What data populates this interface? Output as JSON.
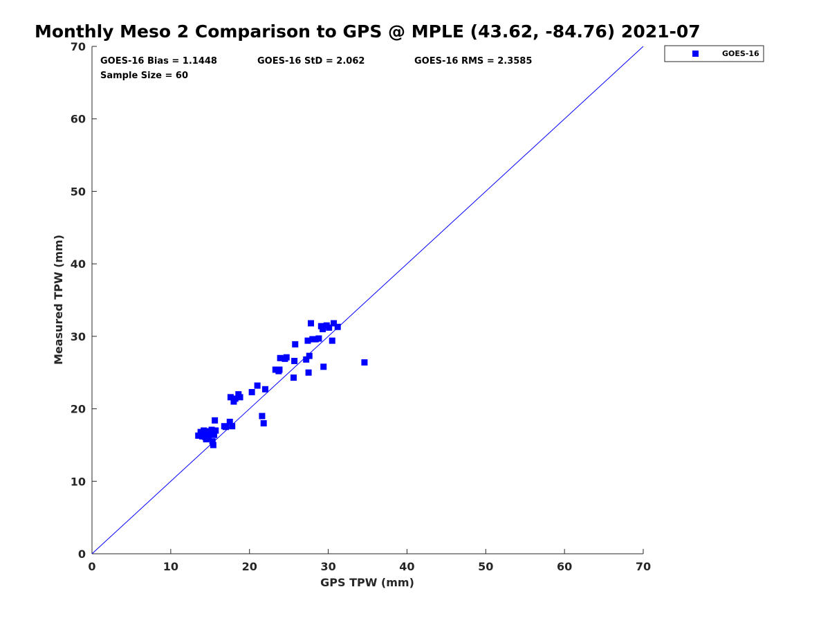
{
  "chart_data": {
    "type": "scatter",
    "title": "Monthly Meso 2 Comparison to GPS @ MPLE (43.62, -84.76) 2021-07",
    "xlabel": "GPS TPW (mm)",
    "ylabel": "Measured TPW (mm)",
    "xlim": [
      0,
      70
    ],
    "ylim": [
      0,
      70
    ],
    "xticks": [
      "0",
      "10",
      "20",
      "30",
      "40",
      "50",
      "60",
      "70"
    ],
    "yticks": [
      "0",
      "10",
      "20",
      "30",
      "40",
      "50",
      "60",
      "70"
    ],
    "grid": false,
    "legend_position": "outside-top-right",
    "stats": {
      "bias": "GOES-16 Bias = 1.1448",
      "std": "GOES-16 StD = 2.062",
      "rms": "GOES-16 RMS = 2.3585",
      "sample_size": "Sample Size = 60"
    },
    "reference_line": {
      "name": "1:1 line",
      "x": [
        0,
        70
      ],
      "y": [
        0,
        70
      ],
      "color": "#0000ff"
    },
    "series": [
      {
        "name": "GOES-16",
        "color": "#0000ff",
        "marker": "square",
        "x": [
          13.5,
          13.8,
          14.0,
          14.2,
          14.3,
          14.5,
          14.6,
          14.8,
          15.0,
          15.2,
          15.3,
          15.4,
          15.5,
          15.6,
          15.7,
          13.9,
          14.4,
          15.1,
          14.1,
          15.4,
          16.8,
          17.0,
          17.5,
          17.8,
          17.6,
          18.0,
          18.2,
          18.6,
          18.8,
          20.3,
          21.0,
          21.6,
          21.8,
          22.0,
          23.3,
          23.7,
          23.9,
          23.8,
          24.5,
          24.7,
          25.6,
          25.7,
          25.8,
          27.2,
          27.5,
          27.4,
          27.6,
          27.8,
          28.0,
          28.4,
          28.8,
          29.1,
          29.3,
          29.8,
          30.1,
          30.5,
          30.7,
          31.2,
          29.4,
          34.6
        ],
        "y": [
          16.3,
          16.8,
          16.2,
          17.0,
          16.5,
          15.8,
          16.9,
          16.0,
          16.6,
          17.1,
          15.5,
          15.0,
          16.4,
          18.4,
          17.0,
          16.6,
          16.1,
          16.9,
          16.7,
          16.5,
          17.6,
          17.5,
          18.2,
          17.6,
          21.6,
          21.0,
          21.4,
          22.0,
          21.6,
          22.3,
          23.2,
          19.0,
          18.0,
          22.7,
          25.4,
          25.2,
          27.0,
          25.4,
          26.9,
          27.1,
          24.3,
          26.6,
          28.9,
          26.8,
          25.0,
          29.4,
          27.3,
          31.8,
          29.6,
          29.6,
          29.7,
          31.4,
          31.0,
          31.5,
          31.2,
          29.4,
          31.8,
          31.3,
          25.8,
          26.4
        ]
      }
    ]
  }
}
